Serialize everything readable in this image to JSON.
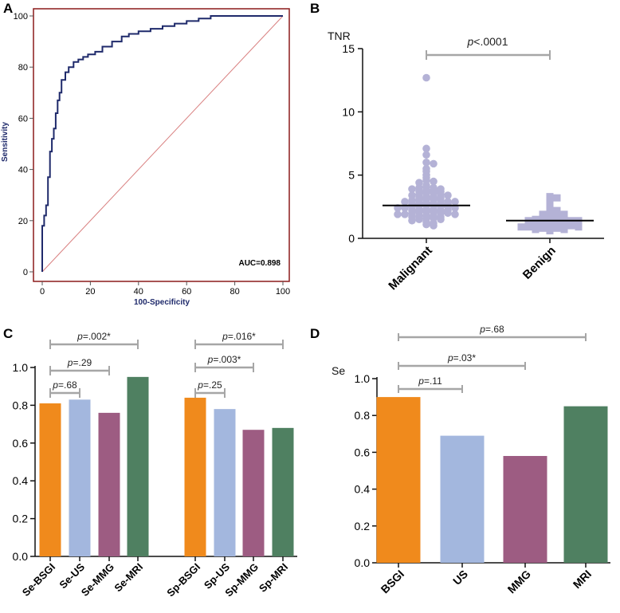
{
  "colors": {
    "roc_line": "#1f2a6b",
    "roc_frame": "#8b1a1a",
    "diag": "#d98080",
    "scatter_fill": "#b4b2d6",
    "bracket": "#a6a6a6",
    "bsgi": "#f08a1c",
    "us": "#a3b7de",
    "mmg": "#9d5c82",
    "mri": "#4f8061"
  },
  "chart_data": [
    {
      "panel": "A",
      "type": "line",
      "title": "",
      "xlabel": "100-Specificity",
      "ylabel": "Sensitivity",
      "xlim": [
        0,
        100
      ],
      "ylim": [
        0,
        100
      ],
      "xticks": [
        "0",
        "20",
        "40",
        "60",
        "80",
        "100"
      ],
      "yticks": [
        "0",
        "20",
        "40",
        "60",
        "80",
        "100"
      ],
      "annotation": "AUC=0.898",
      "series": [
        {
          "name": "ROC",
          "x": [
            0,
            0,
            0.8,
            0.8,
            1.6,
            1.6,
            2.4,
            2.4,
            3.2,
            3.2,
            4,
            4,
            4.8,
            4.8,
            5.6,
            5.6,
            6.4,
            6.4,
            7.2,
            7.2,
            8,
            8,
            9.6,
            9.6,
            11,
            11,
            13,
            13,
            15,
            15,
            17,
            17,
            19,
            19,
            22,
            22,
            25,
            25,
            29,
            29,
            33,
            33,
            36,
            36,
            40,
            40,
            45,
            45,
            50,
            50,
            55,
            55,
            60,
            60,
            65,
            65,
            70,
            70,
            100
          ],
          "y": [
            0,
            18,
            18,
            22,
            22,
            26,
            26,
            37,
            37,
            47,
            47,
            52,
            52,
            56,
            56,
            62,
            62,
            67,
            67,
            70,
            70,
            75,
            75,
            78,
            78,
            80,
            80,
            82,
            82,
            83,
            83,
            84,
            84,
            85,
            85,
            86,
            86,
            88,
            88,
            90,
            90,
            92,
            92,
            93,
            93,
            94,
            94,
            95,
            95,
            96,
            96,
            97,
            97,
            98,
            98,
            99,
            99,
            100,
            100
          ]
        },
        {
          "name": "Reference line",
          "x": [
            0,
            100
          ],
          "y": [
            0,
            100
          ]
        }
      ]
    },
    {
      "panel": "B",
      "type": "scatter",
      "ylabel": "TNR",
      "ylim": [
        0,
        15
      ],
      "yticks": [
        "0",
        "5",
        "10",
        "15"
      ],
      "categories": [
        "Malignant",
        "Benign"
      ],
      "means": [
        2.6,
        1.4
      ],
      "significance": "p<.0001",
      "series": [
        {
          "name": "Malignant",
          "values": [
            12.7,
            7.1,
            6.6,
            6.0,
            5.9,
            5.5,
            5.3,
            5.0,
            4.8,
            4.6,
            4.5,
            4.4,
            4.2,
            4.1,
            4.0,
            4.0,
            3.9,
            3.9,
            3.8,
            3.8,
            3.7,
            3.7,
            3.6,
            3.6,
            3.5,
            3.5,
            3.4,
            3.4,
            3.3,
            3.3,
            3.2,
            3.2,
            3.1,
            3.1,
            3.0,
            3.0,
            3.0,
            2.9,
            2.9,
            2.9,
            2.8,
            2.8,
            2.8,
            2.7,
            2.7,
            2.7,
            2.6,
            2.6,
            2.6,
            2.5,
            2.5,
            2.5,
            2.4,
            2.4,
            2.4,
            2.3,
            2.3,
            2.3,
            2.2,
            2.2,
            2.2,
            2.1,
            2.1,
            2.1,
            2.0,
            2.0,
            2.0,
            1.9,
            1.9,
            1.9,
            1.8,
            1.8,
            1.8,
            1.7,
            1.7,
            1.6,
            1.6,
            1.5,
            1.5,
            1.4,
            1.3,
            1.2,
            1.1,
            1.0
          ]
        },
        {
          "name": "Benign",
          "values": [
            3.3,
            3.2,
            2.8,
            2.4,
            2.3,
            2.2,
            2.1,
            2.0,
            1.9,
            1.9,
            1.8,
            1.8,
            1.7,
            1.7,
            1.6,
            1.6,
            1.5,
            1.5,
            1.5,
            1.4,
            1.4,
            1.4,
            1.3,
            1.3,
            1.3,
            1.2,
            1.2,
            1.2,
            1.1,
            1.1,
            1.1,
            1.0,
            1.0,
            1.0,
            0.9,
            0.9,
            0.9,
            0.8,
            0.8,
            0.8,
            0.7,
            0.7,
            0.6
          ]
        }
      ]
    },
    {
      "panel": "C",
      "type": "bar",
      "ylim": [
        0,
        1.0
      ],
      "yticks": [
        "0.0",
        "0.2",
        "0.4",
        "0.6",
        "0.8",
        "1.0"
      ],
      "categories": [
        "Se-BSGI",
        "Se-US",
        "Se-MMG",
        "Se-MRI",
        "Sp-BSGI",
        "Sp-US",
        "Sp-MMG",
        "Sp-MRI"
      ],
      "values": [
        0.81,
        0.83,
        0.76,
        0.95,
        0.84,
        0.78,
        0.67,
        0.68
      ],
      "brackets": [
        {
          "from": 0,
          "to": 1,
          "p": "=.68"
        },
        {
          "from": 0,
          "to": 2,
          "p": "=.29"
        },
        {
          "from": 0,
          "to": 3,
          "p": "=.002*"
        },
        {
          "from": 4,
          "to": 5,
          "p": "=.25"
        },
        {
          "from": 4,
          "to": 6,
          "p": "=.003*"
        },
        {
          "from": 4,
          "to": 7,
          "p": "=.016*"
        }
      ]
    },
    {
      "panel": "D",
      "type": "bar",
      "ylabel": "Se",
      "ylim": [
        0,
        1.0
      ],
      "yticks": [
        "0.0",
        "0.2",
        "0.4",
        "0.6",
        "0.8",
        "1.0"
      ],
      "categories": [
        "BSGI",
        "US",
        "MMG",
        "MRI"
      ],
      "values": [
        0.9,
        0.69,
        0.58,
        0.85
      ],
      "brackets": [
        {
          "from": 0,
          "to": 1,
          "p": "=.11"
        },
        {
          "from": 0,
          "to": 2,
          "p": "=.03*"
        },
        {
          "from": 0,
          "to": 3,
          "p": "=.68"
        }
      ]
    }
  ],
  "panels": {
    "a": "A",
    "b": "B",
    "c": "C",
    "d": "D"
  },
  "p_prefix": "p"
}
